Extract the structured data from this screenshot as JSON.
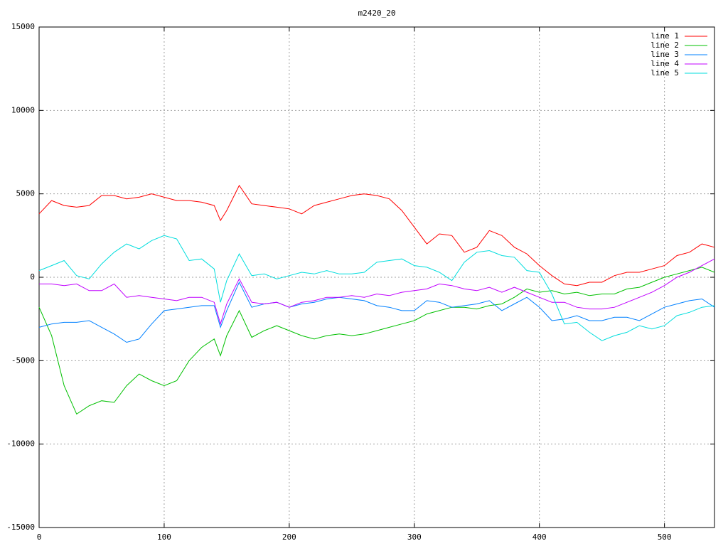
{
  "chart_data": {
    "type": "line",
    "title": "m2420_20",
    "x": [
      0,
      10,
      20,
      30,
      40,
      50,
      60,
      70,
      80,
      90,
      100,
      110,
      120,
      130,
      140,
      145,
      150,
      160,
      170,
      180,
      190,
      200,
      210,
      220,
      230,
      240,
      250,
      260,
      270,
      280,
      290,
      300,
      310,
      320,
      330,
      340,
      350,
      360,
      370,
      380,
      390,
      400,
      410,
      420,
      430,
      440,
      450,
      460,
      470,
      480,
      490,
      500,
      510,
      520,
      530,
      540
    ],
    "series": [
      {
        "name": "line 1",
        "color": "#ff0000",
        "values": [
          3800,
          4600,
          4300,
          4200,
          4300,
          4900,
          4900,
          4700,
          4800,
          5000,
          4800,
          4600,
          4600,
          4500,
          4300,
          3400,
          4000,
          5500,
          4400,
          4300,
          4200,
          4100,
          3800,
          4300,
          4500,
          4700,
          4900,
          5000,
          4900,
          4700,
          4000,
          3000,
          2000,
          2600,
          2500,
          1500,
          1800,
          2800,
          2500,
          1800,
          1400,
          700,
          100,
          -400,
          -500,
          -300,
          -300,
          100,
          300,
          300,
          500,
          700,
          1300,
          1500,
          2000,
          1800
        ]
      },
      {
        "name": "line 2",
        "color": "#00c000",
        "values": [
          -1800,
          -3500,
          -6500,
          -8200,
          -7700,
          -7400,
          -7500,
          -6500,
          -5800,
          -6200,
          -6500,
          -6200,
          -5000,
          -4200,
          -3700,
          -4700,
          -3500,
          -2000,
          -3600,
          -3200,
          -2900,
          -3200,
          -3500,
          -3700,
          -3500,
          -3400,
          -3500,
          -3400,
          -3200,
          -3000,
          -2800,
          -2600,
          -2200,
          -2000,
          -1800,
          -1800,
          -1900,
          -1700,
          -1600,
          -1200,
          -700,
          -900,
          -800,
          -1000,
          -900,
          -1100,
          -1000,
          -1000,
          -700,
          -600,
          -300,
          0,
          200,
          400,
          600,
          300
        ]
      },
      {
        "name": "line 3",
        "color": "#0080ff",
        "values": [
          -3000,
          -2800,
          -2700,
          -2700,
          -2600,
          -3000,
          -3400,
          -3900,
          -3700,
          -2800,
          -2000,
          -1900,
          -1800,
          -1700,
          -1700,
          -3000,
          -2000,
          -300,
          -1800,
          -1600,
          -1500,
          -1800,
          -1600,
          -1500,
          -1300,
          -1200,
          -1300,
          -1400,
          -1700,
          -1800,
          -2000,
          -2000,
          -1400,
          -1500,
          -1800,
          -1700,
          -1600,
          -1400,
          -2000,
          -1600,
          -1200,
          -1800,
          -2600,
          -2500,
          -2300,
          -2600,
          -2600,
          -2400,
          -2400,
          -2600,
          -2200,
          -1800,
          -1600,
          -1400,
          -1300,
          -1800
        ]
      },
      {
        "name": "line 4",
        "color": "#c000ff",
        "values": [
          -400,
          -400,
          -500,
          -400,
          -800,
          -800,
          -400,
          -1200,
          -1100,
          -1200,
          -1300,
          -1400,
          -1200,
          -1200,
          -1500,
          -2800,
          -1600,
          -100,
          -1500,
          -1600,
          -1500,
          -1800,
          -1500,
          -1400,
          -1200,
          -1200,
          -1100,
          -1200,
          -1000,
          -1100,
          -900,
          -800,
          -700,
          -400,
          -500,
          -700,
          -800,
          -600,
          -900,
          -600,
          -900,
          -1200,
          -1500,
          -1500,
          -1800,
          -1900,
          -1900,
          -1800,
          -1500,
          -1200,
          -900,
          -500,
          0,
          300,
          700,
          1100
        ]
      },
      {
        "name": "line 5",
        "color": "#00dddd",
        "values": [
          400,
          700,
          1000,
          100,
          -100,
          800,
          1500,
          2000,
          1700,
          2200,
          2500,
          2300,
          1000,
          1100,
          500,
          -1500,
          -200,
          1400,
          100,
          200,
          -100,
          100,
          300,
          200,
          400,
          200,
          200,
          300,
          900,
          1000,
          1100,
          700,
          600,
          300,
          -200,
          900,
          1500,
          1600,
          1300,
          1200,
          400,
          300,
          -1000,
          -2800,
          -2700,
          -3300,
          -3800,
          -3500,
          -3300,
          -2900,
          -3100,
          -2900,
          -2300,
          -2100,
          -1800,
          -1700
        ]
      }
    ],
    "xlim": [
      0,
      540
    ],
    "ylim": [
      -15000,
      15000
    ],
    "xticks": [
      0,
      100,
      200,
      300,
      400,
      500
    ],
    "yticks": [
      -15000,
      -10000,
      -5000,
      0,
      5000,
      10000,
      15000
    ],
    "grid": true,
    "legend": "top-right"
  }
}
